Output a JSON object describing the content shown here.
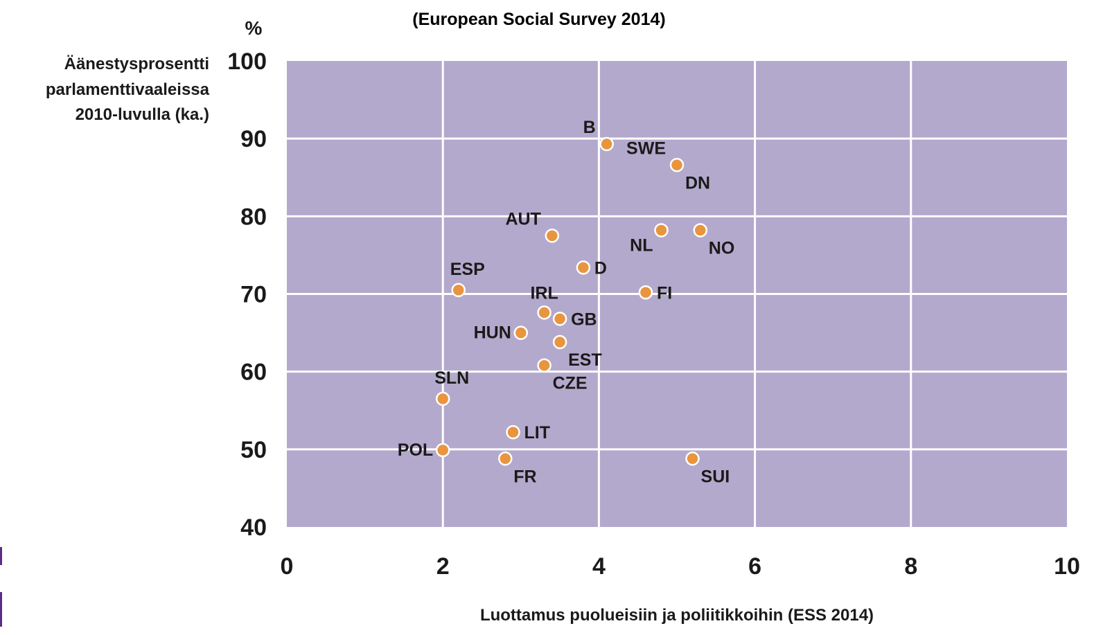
{
  "chart_data": {
    "type": "scatter",
    "title": "(European Social Survey 2014)",
    "ylabel_unit": "%",
    "ylabel_lines": [
      "Äänestysprosentti",
      "parlamenttivaaleissa",
      "2010-luvulla (ka.)"
    ],
    "xlabel": "Luottamus puolueisiin ja poliitikkoihin (ESS 2014)",
    "xlim": [
      0,
      10
    ],
    "ylim": [
      40,
      100
    ],
    "xticks": [
      0,
      2,
      4,
      6,
      8,
      10
    ],
    "yticks": [
      40,
      50,
      60,
      70,
      80,
      90,
      100
    ],
    "grid": true,
    "plot_background": "#b3a9cc",
    "grid_color": "#ffffff",
    "marker_color": "#e8953f",
    "points": [
      {
        "label": "B",
        "x": 4.1,
        "y": 89.3,
        "label_pos": "above-left"
      },
      {
        "label": "SWE",
        "x": 5.0,
        "y": 86.6,
        "label_pos": "above-left"
      },
      {
        "label": "DN",
        "x": 5.0,
        "y": 86.6,
        "label_pos": "below-right"
      },
      {
        "label": "AUT",
        "x": 3.4,
        "y": 77.5,
        "label_pos": "above-left"
      },
      {
        "label": "NL",
        "x": 4.8,
        "y": 78.2,
        "label_pos": "below-left"
      },
      {
        "label": "NO",
        "x": 5.3,
        "y": 78.2,
        "label_pos": "below-right"
      },
      {
        "label": "D",
        "x": 3.8,
        "y": 73.4,
        "label_pos": "right"
      },
      {
        "label": "ESP",
        "x": 2.2,
        "y": 70.5,
        "label_pos": "above-right"
      },
      {
        "label": "FI",
        "x": 4.6,
        "y": 70.2,
        "label_pos": "right"
      },
      {
        "label": "IRL",
        "x": 3.3,
        "y": 67.6,
        "label_pos": "above"
      },
      {
        "label": "GB",
        "x": 3.5,
        "y": 66.8,
        "label_pos": "right"
      },
      {
        "label": "HUN",
        "x": 3.0,
        "y": 65.0,
        "label_pos": "left"
      },
      {
        "label": "EST",
        "x": 3.5,
        "y": 63.8,
        "label_pos": "below-right"
      },
      {
        "label": "CZE",
        "x": 3.3,
        "y": 60.8,
        "label_pos": "below-right"
      },
      {
        "label": "SLN",
        "x": 2.0,
        "y": 56.5,
        "label_pos": "above-right"
      },
      {
        "label": "LIT",
        "x": 2.9,
        "y": 52.2,
        "label_pos": "right"
      },
      {
        "label": "POL",
        "x": 2.0,
        "y": 49.9,
        "label_pos": "left"
      },
      {
        "label": "FR",
        "x": 2.8,
        "y": 48.8,
        "label_pos": "below-right"
      },
      {
        "label": "SUI",
        "x": 5.2,
        "y": 48.8,
        "label_pos": "below-right"
      }
    ]
  }
}
